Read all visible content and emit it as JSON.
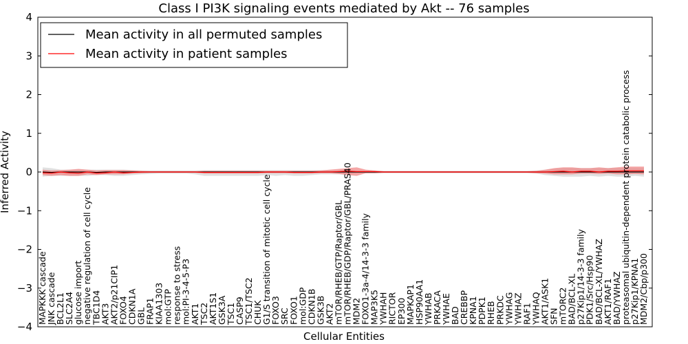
{
  "chart_data": {
    "type": "line",
    "title": "Class I PI3K signaling events mediated by Akt -- 76 samples",
    "xlabel": "Cellular Entities",
    "ylabel": "Inferred Activity",
    "ylim": [
      -4,
      4
    ],
    "yticks": [
      "4",
      "3",
      "2",
      "1",
      "0",
      "−1",
      "−2",
      "−3",
      "−4"
    ],
    "grid": false,
    "legend_position": "top-left",
    "categories": [
      "MAPKKK cascade",
      "JNK cascade",
      "BCL2L1",
      "SLC2A4",
      "glucose import",
      "negative regulation of cell cycle",
      "TBC1D4",
      "AKT3",
      "AKT2/p21CIP1",
      "FOXO4",
      "CDKN1A",
      "GBL",
      "FRAP1",
      "KIAA1303",
      "mol:GTP",
      "response to stress",
      "mol:PI-3-4-5-P3",
      "AKT1",
      "TSC2",
      "AKT1S1",
      "GSK3A",
      "TSC1",
      "CASP9",
      "TSC1/TSC2",
      "CHUK",
      "G1/S transition of mitotic cell cycle",
      "FOXO3",
      "SRC",
      "FOXO1",
      "mol:GDP",
      "CDKN1B",
      "GSK3B",
      "AKT2",
      "mTOR/RHEB/GTP/Raptor/GBL",
      "mTOR/RHEB/GDP/Raptor/GBL/PRAS40",
      "MDM2",
      "FOXO1-3a-4/14-3-3 family",
      "MAP3K5",
      "YWHAH",
      "RICTOR",
      "EP300",
      "MAPKAP1",
      "HSP90AA1",
      "YWHAB",
      "PRKACA",
      "YWHAE",
      "BAD",
      "CREBBP",
      "KPNA1",
      "PDPK1",
      "RHEB",
      "PRKDC",
      "YWHAG",
      "YWHAZ",
      "RAF1",
      "YWHAQ",
      "AKT1/ASK1",
      "SFN",
      "mTORC2",
      "BAD/BCL-XL",
      "p27Kip1/14-3-3 family",
      "PDK1/Src/Hsp90",
      "BAD/BCL-XL/YWHAZ",
      "AKT1/RAF1",
      "BAD/YWHAZ",
      "proteasomal ubiquitin-dependent protein catabolic process",
      "p27Kip1/KPNA1",
      "MDM2/Cbp/p300"
    ],
    "series": [
      {
        "name": "Mean activity in all permuted samples",
        "color": "#000000",
        "values": [
          0,
          -0.01,
          0,
          0,
          0,
          0,
          -0.01,
          0,
          0,
          0,
          0,
          0,
          0,
          0,
          0,
          0,
          0,
          0,
          0,
          0,
          0,
          0,
          0,
          0,
          0,
          0,
          0,
          0,
          0,
          0,
          0,
          0,
          0,
          0,
          0,
          0,
          0,
          0,
          0,
          0,
          0,
          0,
          0,
          0,
          0,
          0,
          0,
          0,
          0,
          0,
          0,
          0,
          0,
          0,
          0,
          0,
          0,
          0,
          0,
          0,
          0,
          0,
          0,
          0,
          0,
          0,
          0,
          0
        ],
        "band_low": [
          -0.12,
          -0.1,
          -0.1,
          -0.1,
          -0.1,
          -0.1,
          -0.08,
          -0.08,
          -0.1,
          -0.1,
          -0.08,
          -0.06,
          -0.05,
          -0.04,
          -0.04,
          -0.04,
          -0.04,
          -0.06,
          -0.1,
          -0.1,
          -0.1,
          -0.1,
          -0.1,
          -0.1,
          -0.1,
          -0.08,
          -0.1,
          -0.08,
          -0.1,
          -0.1,
          -0.08,
          -0.06,
          -0.06,
          -0.06,
          -0.06,
          -0.04,
          -0.04,
          -0.04,
          -0.03,
          -0.03,
          -0.03,
          -0.03,
          -0.03,
          -0.03,
          -0.03,
          -0.03,
          -0.03,
          -0.03,
          -0.03,
          -0.03,
          -0.03,
          -0.03,
          -0.03,
          -0.03,
          -0.03,
          -0.04,
          -0.08,
          -0.1,
          -0.12,
          -0.12,
          -0.12,
          -0.1,
          -0.12,
          -0.1,
          -0.12,
          -0.12,
          -0.1,
          -0.12
        ],
        "band_high": [
          0.12,
          0.1,
          0.06,
          0.06,
          0.06,
          0.06,
          0.06,
          0.06,
          0.06,
          0.06,
          0.05,
          0.04,
          0.04,
          0.04,
          0.04,
          0.04,
          0.04,
          0.04,
          0.05,
          0.05,
          0.05,
          0.05,
          0.05,
          0.05,
          0.05,
          0.05,
          0.05,
          0.05,
          0.05,
          0.05,
          0.05,
          0.05,
          0.05,
          0.05,
          0.05,
          0.04,
          0.04,
          0.04,
          0.03,
          0.03,
          0.03,
          0.03,
          0.03,
          0.03,
          0.03,
          0.03,
          0.03,
          0.03,
          0.03,
          0.03,
          0.03,
          0.03,
          0.03,
          0.03,
          0.03,
          0.04,
          0.06,
          0.08,
          0.1,
          0.1,
          0.1,
          0.1,
          0.1,
          0.1,
          0.1,
          0.1,
          0.1,
          0.1
        ]
      },
      {
        "name": "Mean activity in patient samples",
        "color": "#ff0000",
        "values": [
          -0.02,
          -0.03,
          0,
          -0.02,
          -0.03,
          0,
          -0.03,
          -0.02,
          0,
          -0.02,
          -0.01,
          0,
          0,
          0,
          0,
          0,
          0,
          0,
          -0.01,
          -0.01,
          -0.01,
          -0.01,
          -0.01,
          -0.01,
          -0.01,
          0,
          0,
          0,
          -0.01,
          -0.01,
          -0.01,
          0,
          0,
          0.01,
          0.02,
          0.01,
          0.01,
          0.01,
          0,
          0,
          0,
          0,
          0,
          0,
          0,
          0,
          0,
          0,
          0,
          0,
          0,
          0,
          0,
          0,
          0,
          0,
          0,
          0.01,
          0.02,
          0,
          0.02,
          0.02,
          0,
          0.02,
          0.02,
          0.03,
          0.03,
          0.03
        ],
        "band_low": [
          -0.08,
          -0.1,
          -0.08,
          -0.1,
          -0.1,
          -0.06,
          -0.08,
          -0.06,
          -0.06,
          -0.06,
          -0.04,
          -0.03,
          -0.02,
          -0.02,
          -0.02,
          -0.02,
          -0.02,
          -0.02,
          -0.04,
          -0.04,
          -0.04,
          -0.04,
          -0.04,
          -0.04,
          -0.04,
          -0.03,
          -0.03,
          -0.03,
          -0.04,
          -0.04,
          -0.04,
          -0.03,
          -0.03,
          -0.05,
          -0.08,
          -0.1,
          -0.03,
          -0.03,
          -0.02,
          -0.02,
          -0.02,
          -0.02,
          -0.02,
          -0.02,
          -0.02,
          -0.02,
          -0.02,
          -0.02,
          -0.02,
          -0.02,
          -0.02,
          -0.02,
          -0.02,
          -0.02,
          -0.02,
          -0.03,
          -0.04,
          -0.06,
          -0.06,
          -0.06,
          -0.04,
          -0.04,
          -0.05,
          -0.04,
          -0.06,
          -0.06,
          -0.05,
          -0.06
        ],
        "band_high": [
          0.06,
          0.04,
          0.05,
          0.06,
          0.08,
          0.06,
          0.04,
          0.05,
          0.05,
          0.05,
          0.04,
          0.03,
          0.02,
          0.02,
          0.02,
          0.02,
          0.02,
          0.02,
          0.03,
          0.03,
          0.03,
          0.03,
          0.03,
          0.03,
          0.03,
          0.03,
          0.03,
          0.03,
          0.03,
          0.03,
          0.03,
          0.04,
          0.06,
          0.08,
          0.1,
          0.12,
          0.06,
          0.04,
          0.02,
          0.02,
          0.02,
          0.02,
          0.02,
          0.02,
          0.02,
          0.02,
          0.02,
          0.02,
          0.02,
          0.02,
          0.02,
          0.02,
          0.02,
          0.02,
          0.02,
          0.03,
          0.06,
          0.1,
          0.12,
          0.12,
          0.1,
          0.1,
          0.12,
          0.1,
          0.12,
          0.14,
          0.14,
          0.14
        ]
      }
    ]
  }
}
